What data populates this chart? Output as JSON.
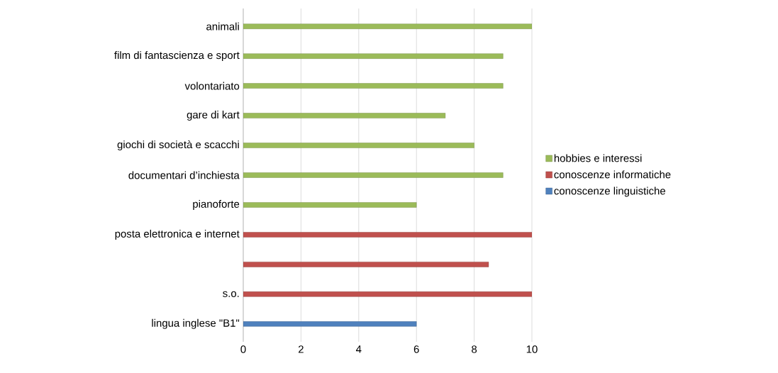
{
  "chart_data": {
    "type": "bar",
    "orientation": "horizontal",
    "categories": [
      "animali",
      "film di fantascienza e sport",
      "volontariato",
      "gare di kart",
      "giochi di società e scacchi",
      "documentari d’inchiesta",
      "pianoforte",
      "posta elettronica e internet",
      null,
      "s.o.",
      "lingua inglese \"B1\""
    ],
    "series": [
      {
        "name": "hobbies e interessi",
        "color": "#9bbb59",
        "values": [
          10,
          9,
          9,
          7,
          8,
          9,
          6,
          null,
          null,
          null,
          null
        ]
      },
      {
        "name": "conoscenze informatiche",
        "color": "#c0504d",
        "values": [
          null,
          null,
          null,
          null,
          null,
          null,
          null,
          10,
          8.5,
          10,
          null
        ]
      },
      {
        "name": "conoscenze linguistiche",
        "color": "#4f81bd",
        "values": [
          null,
          null,
          null,
          null,
          null,
          null,
          null,
          null,
          null,
          null,
          6
        ]
      }
    ],
    "xlim": [
      0,
      10
    ],
    "xticks": [
      0,
      2,
      4,
      6,
      8,
      10
    ],
    "grid": "x",
    "legend": "right"
  }
}
